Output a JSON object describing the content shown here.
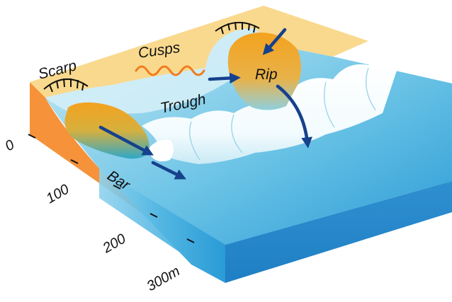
{
  "labels": {
    "scarp": "Scarp",
    "cusps": "Cusps",
    "trough": "Trough",
    "rip": "Rip",
    "bar": "Bar"
  },
  "scale": {
    "ticks": [
      "0",
      "100",
      "200",
      "300m"
    ]
  },
  "colors": {
    "beach_sand": "#f9d98e",
    "cross_section": "#f5923a",
    "sea_deep": "#2a9bd6",
    "sea_shallow": "#c9eaf5",
    "foam": "#ffffff",
    "bar_top": "#f3a21e",
    "bar_bottom": "#2fa8c8",
    "arrow": "#16418c",
    "cusps_line": "#f07d1e",
    "scarp_line": "#111111"
  }
}
